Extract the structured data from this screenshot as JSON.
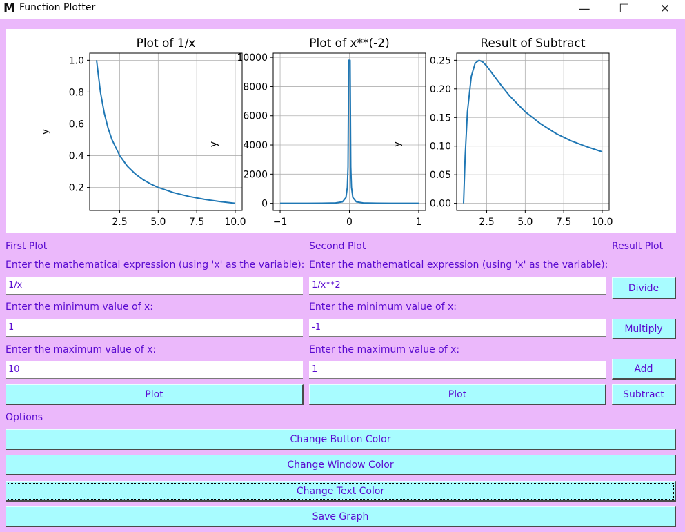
{
  "window": {
    "title": "Function Plotter",
    "icon_glyph": "M",
    "minimize_glyph": "—",
    "maximize_glyph": "☐",
    "close_glyph": "✕"
  },
  "colors": {
    "window_bg": "#ebb8fb",
    "button_bg": "#a8fcff",
    "text": "#5a0ad0",
    "line": "#1f77b4"
  },
  "chart_data": [
    {
      "type": "line",
      "title": "Plot of 1/x",
      "xlabel": "",
      "ylabel": "y",
      "xlim": [
        0.55,
        10.45
      ],
      "ylim": [
        0.055,
        1.045
      ],
      "xticks": [
        2.5,
        5.0,
        7.5,
        10.0
      ],
      "xtick_labels": [
        "2.5",
        "5.0",
        "7.5",
        "10.0"
      ],
      "yticks": [
        0.2,
        0.4,
        0.6,
        0.8,
        1.0
      ],
      "ytick_labels": [
        "0.2",
        "0.4",
        "0.6",
        "0.8",
        "1.0"
      ],
      "grid": true,
      "series": [
        {
          "x": [
            1,
            1.25,
            1.5,
            1.75,
            2,
            2.5,
            3,
            3.5,
            4,
            4.5,
            5,
            6,
            7,
            8,
            9,
            10
          ],
          "y": [
            1.0,
            0.8,
            0.667,
            0.571,
            0.5,
            0.4,
            0.333,
            0.286,
            0.25,
            0.222,
            0.2,
            0.167,
            0.143,
            0.125,
            0.111,
            0.1
          ]
        }
      ]
    },
    {
      "type": "line",
      "title": "Plot of x**(-2)",
      "xlabel": "",
      "ylabel": "y",
      "xlim": [
        -1.1,
        1.1
      ],
      "ylim": [
        -490,
        10290
      ],
      "xticks": [
        -1,
        0,
        1
      ],
      "xtick_labels": [
        "−1",
        "0",
        "1"
      ],
      "yticks": [
        0,
        2000,
        4000,
        6000,
        8000,
        10000
      ],
      "ytick_labels": [
        "0",
        "2000",
        "4000",
        "6000",
        "8000",
        "10000"
      ],
      "grid": true,
      "series": [
        {
          "x": [
            -1,
            -0.8,
            -0.6,
            -0.4,
            -0.2,
            -0.1,
            -0.05,
            -0.03,
            -0.02,
            -0.01,
            0.01,
            0.02,
            0.03,
            0.05,
            0.1,
            0.2,
            0.4,
            0.6,
            0.8,
            1
          ],
          "y": [
            1,
            1.6,
            2.8,
            6.2,
            25,
            100,
            400,
            1100,
            2500,
            9800,
            9800,
            2500,
            1100,
            400,
            100,
            25,
            6.2,
            2.8,
            1.6,
            1
          ]
        }
      ]
    },
    {
      "type": "line",
      "title": "Result of Subtract",
      "xlabel": "",
      "ylabel": "y",
      "xlim": [
        0.55,
        10.45
      ],
      "ylim": [
        -0.0125,
        0.2625
      ],
      "xticks": [
        2.5,
        5.0,
        7.5,
        10.0
      ],
      "xtick_labels": [
        "2.5",
        "5.0",
        "7.5",
        "10.0"
      ],
      "yticks": [
        0.0,
        0.05,
        0.1,
        0.15,
        0.2,
        0.25
      ],
      "ytick_labels": [
        "0.00",
        "0.05",
        "0.10",
        "0.15",
        "0.20",
        "0.25"
      ],
      "grid": true,
      "series": [
        {
          "x": [
            1,
            1.1,
            1.25,
            1.5,
            1.75,
            2,
            2.25,
            2.5,
            3,
            3.5,
            4,
            5,
            6,
            7,
            8,
            9,
            10
          ],
          "y": [
            0,
            0.083,
            0.16,
            0.222,
            0.245,
            0.25,
            0.247,
            0.24,
            0.222,
            0.204,
            0.1875,
            0.16,
            0.139,
            0.122,
            0.109,
            0.099,
            0.09
          ]
        }
      ]
    }
  ],
  "first_plot": {
    "header": "First Plot",
    "expr_label": "Enter the mathematical expression (using 'x' as the variable):",
    "expr_value": "1/x",
    "min_label": "Enter the minimum value of x:",
    "min_value": "1",
    "max_label": "Enter the maximum value of x:",
    "max_value": "10",
    "plot_button": "Plot"
  },
  "second_plot": {
    "header": "Second Plot",
    "expr_label": "Enter the mathematical expression (using 'x' as the variable):",
    "expr_value": "1/x**2",
    "min_label": "Enter the minimum value of x:",
    "min_value": "-1",
    "max_label": "Enter the maximum value of x:",
    "max_value": "1",
    "plot_button": "Plot"
  },
  "result_plot": {
    "header": "Result Plot",
    "divide": "Divide",
    "multiply": "Multiply",
    "add": "Add",
    "subtract": "Subtract"
  },
  "options": {
    "header": "Options",
    "change_button_color": "Change Button Color",
    "change_window_color": "Change Window Color",
    "change_text_color": "Change Text Color",
    "save_graph": "Save Graph"
  }
}
